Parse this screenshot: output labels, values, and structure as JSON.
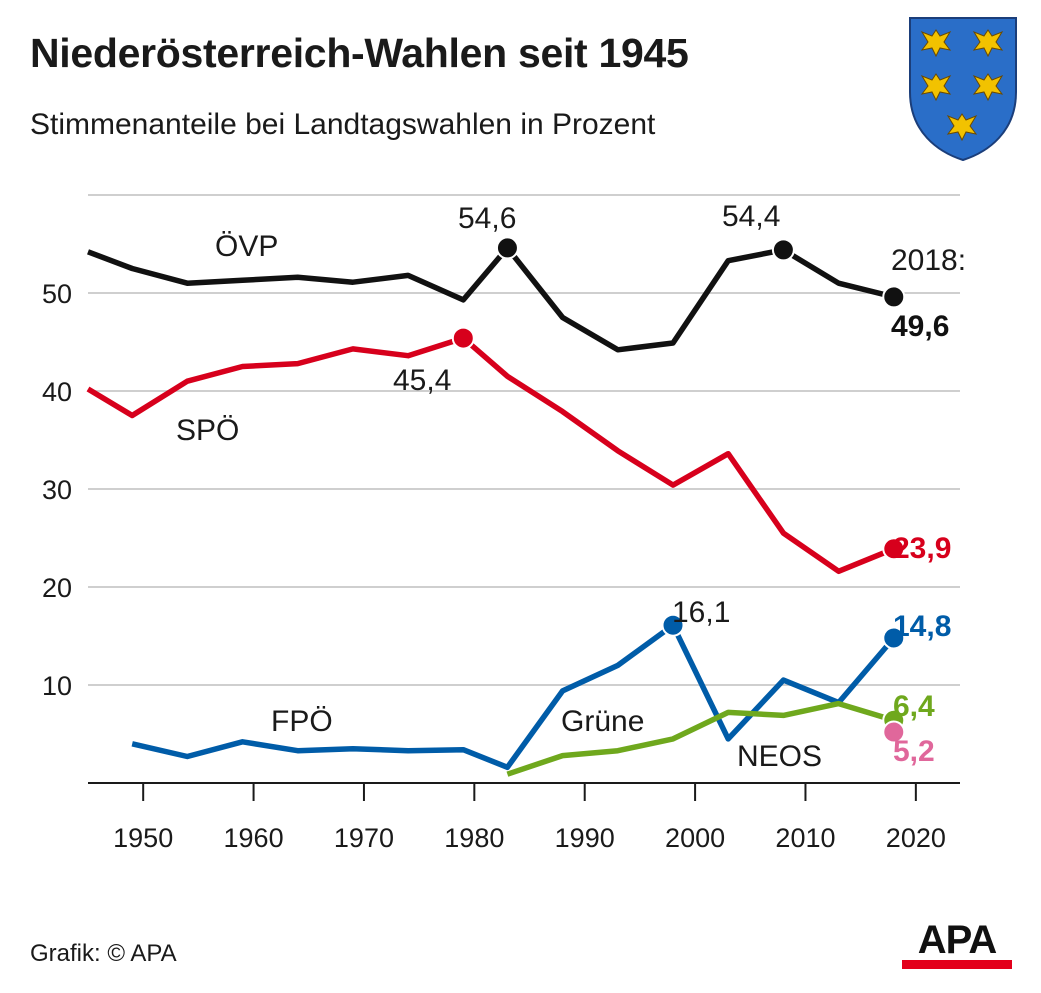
{
  "header": {
    "title": "Niederösterreich-Wahlen seit 1945",
    "subtitle": "Stimmenanteile bei Landtagswahlen in Prozent"
  },
  "footer": {
    "credit": "Grafik: © APA",
    "logo_text": "APA"
  },
  "colors": {
    "ovp": "#111111",
    "spo": "#d7001c",
    "fpo": "#005ca8",
    "grune": "#6fa81d",
    "neos": "#e0679b",
    "grid": "#cfcfcf",
    "brand_red": "#e3001b"
  },
  "chart_data": {
    "type": "line",
    "title": "Niederösterreich-Wahlen seit 1945",
    "subtitle": "Stimmenanteile bei Landtagswahlen in Prozent",
    "xlim": [
      1945,
      2024
    ],
    "ylim": [
      0,
      60
    ],
    "x_ticks": [
      1950,
      1960,
      1970,
      1980,
      1990,
      2000,
      2010,
      2020
    ],
    "y_ticks": [
      10,
      20,
      30,
      40,
      50
    ],
    "grid": "horizontal",
    "legend": "inline labels",
    "series": [
      {
        "name": "ÖVP",
        "color": "#111111",
        "x": [
          1945,
          1949,
          1954,
          1959,
          1964,
          1969,
          1974,
          1979,
          1983,
          1988,
          1993,
          1998,
          2003,
          2008,
          2013,
          2018
        ],
        "values": [
          54.2,
          52.5,
          51.0,
          51.3,
          51.6,
          51.1,
          51.8,
          49.3,
          54.6,
          47.5,
          44.2,
          44.9,
          53.3,
          54.4,
          51.0,
          49.6
        ]
      },
      {
        "name": "SPÖ",
        "color": "#d7001c",
        "x": [
          1945,
          1949,
          1954,
          1959,
          1964,
          1969,
          1974,
          1979,
          1983,
          1988,
          1993,
          1998,
          2003,
          2008,
          2013,
          2018
        ],
        "values": [
          40.2,
          37.5,
          41.0,
          42.5,
          42.8,
          44.3,
          43.6,
          45.4,
          41.5,
          37.9,
          33.9,
          30.4,
          33.6,
          25.5,
          21.6,
          23.9
        ]
      },
      {
        "name": "FPÖ",
        "color": "#005ca8",
        "x": [
          1949,
          1954,
          1959,
          1964,
          1969,
          1974,
          1979,
          1983,
          1988,
          1993,
          1998,
          2003,
          2008,
          2013,
          2018
        ],
        "values": [
          4.0,
          2.7,
          4.2,
          3.3,
          3.5,
          3.3,
          3.4,
          1.6,
          9.4,
          12.0,
          16.1,
          4.5,
          10.5,
          8.2,
          14.8
        ]
      },
      {
        "name": "Grüne",
        "color": "#6fa81d",
        "x": [
          1983,
          1988,
          1993,
          1998,
          2003,
          2008,
          2013,
          2018
        ],
        "values": [
          0.9,
          2.8,
          3.3,
          4.5,
          7.2,
          6.9,
          8.1,
          6.4
        ]
      },
      {
        "name": "NEOS",
        "color": "#e0679b",
        "x": [
          2018
        ],
        "values": [
          5.2
        ]
      }
    ],
    "annotations": [
      {
        "series": "ÖVP",
        "x": 1983,
        "y": 54.6,
        "text": "54,6"
      },
      {
        "series": "ÖVP",
        "x": 2008,
        "y": 54.4,
        "text": "54,4"
      },
      {
        "series": "ÖVP",
        "x": 2018,
        "y": 49.6,
        "text": "49,6",
        "prefix": "2018:"
      },
      {
        "series": "SPÖ",
        "x": 1979,
        "y": 45.4,
        "text": "45,4"
      },
      {
        "series": "SPÖ",
        "x": 2018,
        "y": 23.9,
        "text": "23,9"
      },
      {
        "series": "FPÖ",
        "x": 1998,
        "y": 16.1,
        "text": "16,1"
      },
      {
        "series": "FPÖ",
        "x": 2018,
        "y": 14.8,
        "text": "14,8"
      },
      {
        "series": "Grüne",
        "x": 2018,
        "y": 6.4,
        "text": "6,4"
      },
      {
        "series": "NEOS",
        "x": 2018,
        "y": 5.2,
        "text": "5,2"
      }
    ]
  }
}
